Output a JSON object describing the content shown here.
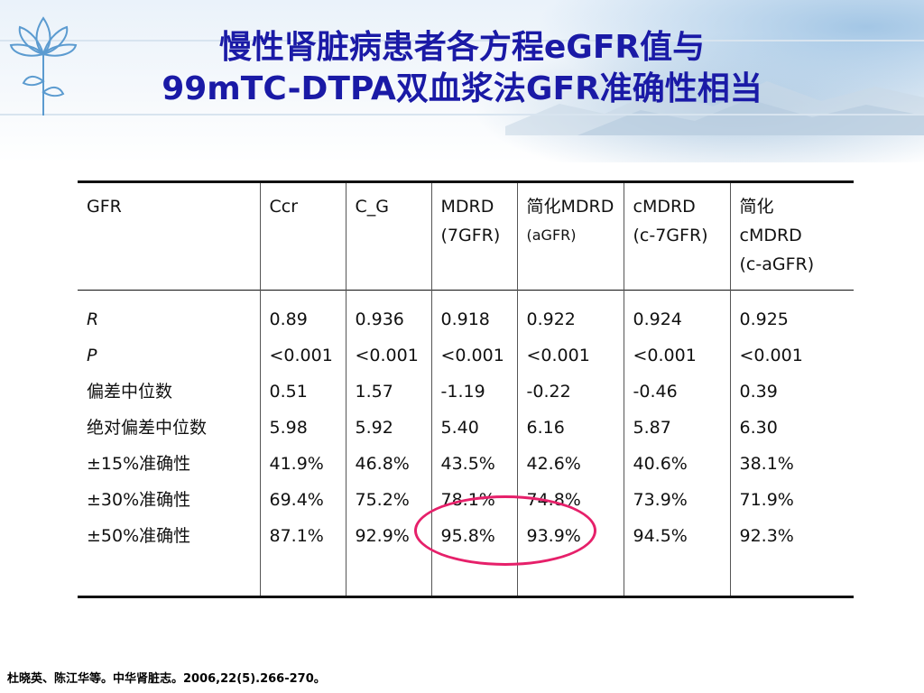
{
  "title_line1": "慢性肾脏病患者各方程eGFR值与",
  "title_line2": "99mTC-DTPA双血浆法GFR准确性相当",
  "table": {
    "headers": [
      [
        "GFR"
      ],
      [
        "Ccr"
      ],
      [
        "C_G"
      ],
      [
        "MDRD",
        "(7GFR)"
      ],
      [
        "简化MDRD",
        "(aGFR)"
      ],
      [
        "cMDRD",
        "(c-7GFR)"
      ],
      [
        "简化",
        "cMDRD",
        "(c-aGFR)"
      ]
    ],
    "row_labels": [
      "R",
      "P",
      "偏差中位数",
      "绝对偏差中位数",
      "±15%准确性",
      "±30%准确性",
      "±50%准确性"
    ],
    "columns": [
      [
        "0.89",
        "<0.001",
        "0.51",
        "5.98",
        "41.9%",
        "69.4%",
        "87.1%"
      ],
      [
        "0.936",
        "<0.001",
        "1.57",
        "5.92",
        "46.8%",
        "75.2%",
        "92.9%"
      ],
      [
        "0.918",
        "<0.001",
        "-1.19",
        "5.40",
        "43.5%",
        "78.1%",
        "95.8%"
      ],
      [
        "0.922",
        "<0.001",
        "-0.22",
        "6.16",
        "42.6%",
        "74.8%",
        "93.9%"
      ],
      [
        "0.924",
        "<0.001",
        "-0.46",
        "5.87",
        "40.6%",
        "73.9%",
        "94.5%"
      ],
      [
        "0.925",
        "<0.001",
        "0.39",
        "6.30",
        "38.1%",
        "71.9%",
        "92.3%"
      ]
    ]
  },
  "citation": "杜晓英、陈江华等。中华肾脏志。2006,22(5).266-270。",
  "colors": {
    "title": "#1a1aa6",
    "highlight_circle": "#e6206a"
  },
  "icons": {
    "logo": "lotus-flower-logo",
    "background": "mountain-landscape"
  }
}
